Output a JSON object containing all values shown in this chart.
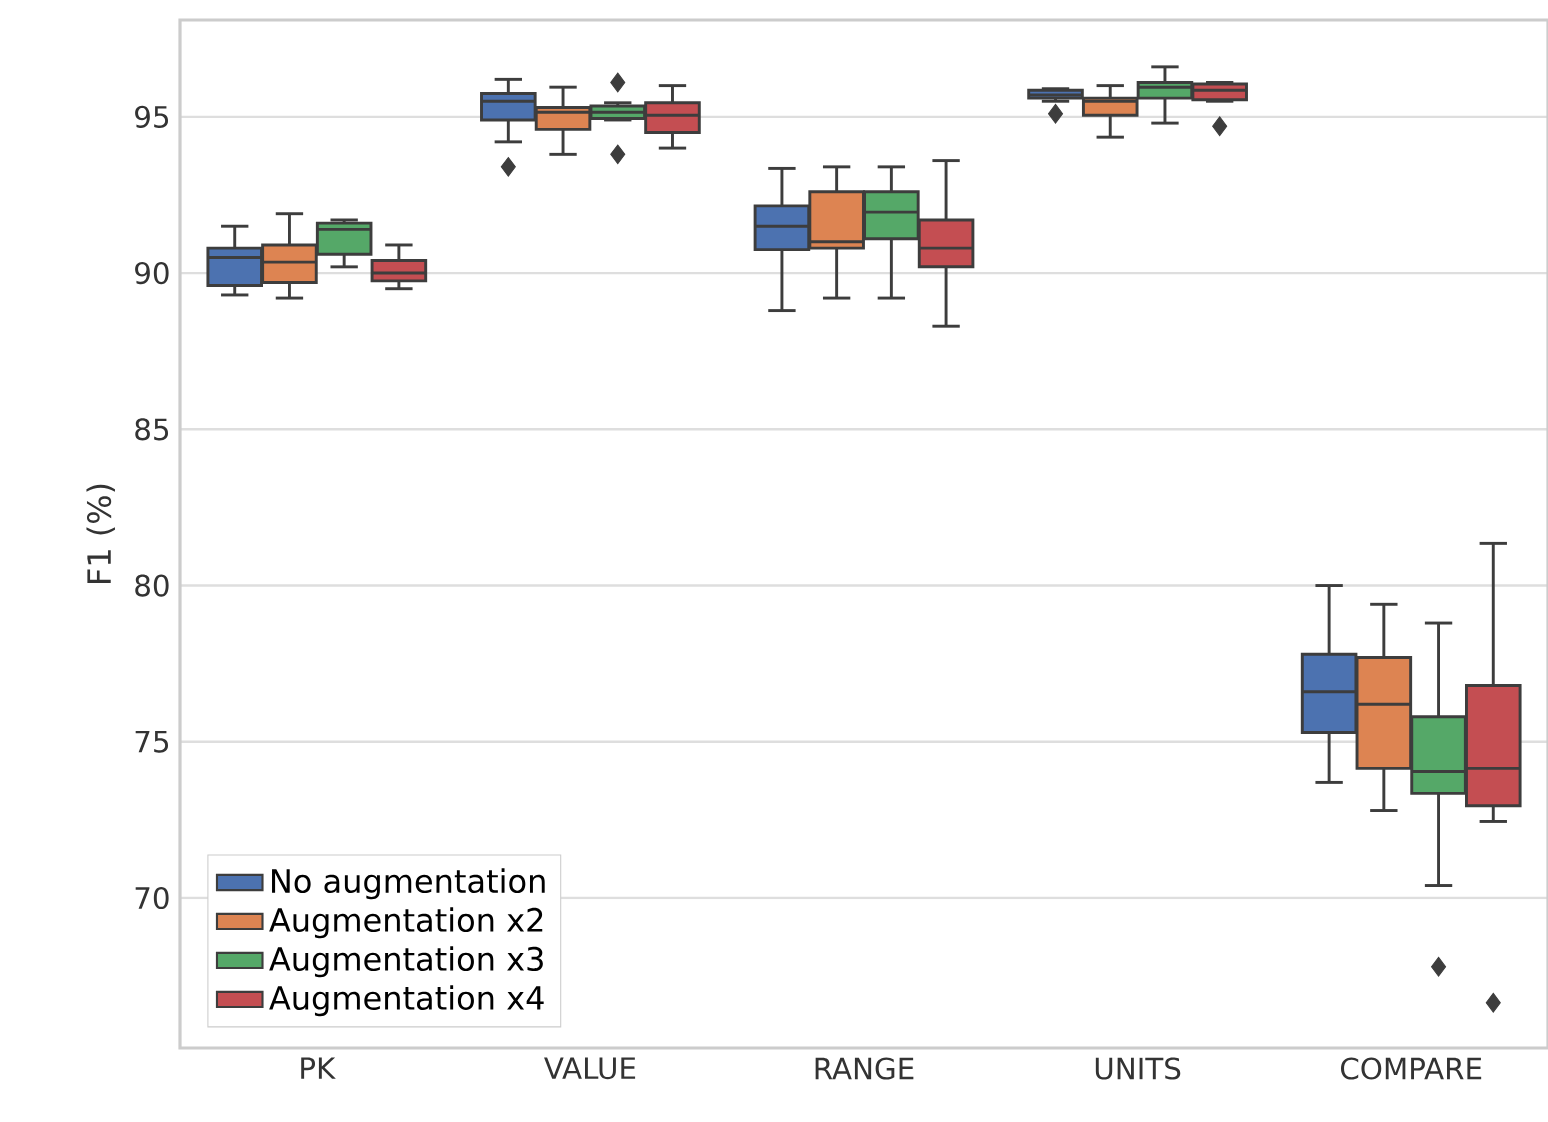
{
  "chart_data": {
    "type": "box",
    "ylabel": "F1 (%)",
    "categories": [
      "PK",
      "VALUE",
      "RANGE",
      "UNITS",
      "COMPARE"
    ],
    "series": [
      {
        "name": "No augmentation",
        "color": "#4c72b0",
        "boxes": [
          {
            "low": 89.3,
            "q1": 89.6,
            "median": 90.5,
            "q3": 90.8,
            "high": 91.5
          },
          {
            "low": 94.2,
            "q1": 94.9,
            "median": 95.5,
            "q3": 95.75,
            "high": 96.2,
            "outliers": [
              93.4
            ]
          },
          {
            "low": 88.8,
            "q1": 90.75,
            "median": 91.5,
            "q3": 92.15,
            "high": 93.35
          },
          {
            "low": 95.5,
            "q1": 95.6,
            "median": 95.7,
            "q3": 95.85,
            "high": 95.9,
            "outliers": [
              95.1
            ]
          },
          {
            "low": 73.7,
            "q1": 75.3,
            "median": 76.6,
            "q3": 77.8,
            "high": 80.0
          }
        ]
      },
      {
        "name": "Augmentation x2",
        "color": "#dd8452",
        "boxes": [
          {
            "low": 89.2,
            "q1": 89.7,
            "median": 90.35,
            "q3": 90.9,
            "high": 91.9
          },
          {
            "low": 93.8,
            "q1": 94.6,
            "median": 95.15,
            "q3": 95.3,
            "high": 95.95
          },
          {
            "low": 89.2,
            "q1": 90.8,
            "median": 91.0,
            "q3": 92.6,
            "high": 93.4
          },
          {
            "low": 94.35,
            "q1": 95.05,
            "median": 95.5,
            "q3": 95.6,
            "high": 96.0
          },
          {
            "low": 72.8,
            "q1": 74.15,
            "median": 76.2,
            "q3": 77.7,
            "high": 79.4
          }
        ]
      },
      {
        "name": "Augmentation x3",
        "color": "#55a868",
        "boxes": [
          {
            "low": 90.2,
            "q1": 90.6,
            "median": 91.4,
            "q3": 91.6,
            "high": 91.7
          },
          {
            "low": 94.9,
            "q1": 94.95,
            "median": 95.15,
            "q3": 95.35,
            "high": 95.45,
            "outliers": [
              96.1,
              93.8
            ]
          },
          {
            "low": 89.2,
            "q1": 91.1,
            "median": 91.95,
            "q3": 92.6,
            "high": 93.4
          },
          {
            "low": 94.8,
            "q1": 95.6,
            "median": 95.95,
            "q3": 96.1,
            "high": 96.6
          },
          {
            "low": 70.4,
            "q1": 73.35,
            "median": 74.05,
            "q3": 75.8,
            "high": 78.8,
            "outliers": [
              67.8
            ]
          }
        ]
      },
      {
        "name": "Augmentation x4",
        "color": "#c44e52",
        "boxes": [
          {
            "low": 89.5,
            "q1": 89.75,
            "median": 90.0,
            "q3": 90.4,
            "high": 90.9
          },
          {
            "low": 94.0,
            "q1": 94.5,
            "median": 95.05,
            "q3": 95.45,
            "high": 96.0
          },
          {
            "low": 88.3,
            "q1": 90.2,
            "median": 90.8,
            "q3": 91.7,
            "high": 93.6
          },
          {
            "low": 95.5,
            "q1": 95.55,
            "median": 95.85,
            "q3": 96.05,
            "high": 96.1,
            "outliers": [
              94.7
            ]
          },
          {
            "low": 72.45,
            "q1": 72.95,
            "median": 74.15,
            "q3": 76.8,
            "high": 81.35,
            "outliers": [
              66.65
            ]
          }
        ]
      }
    ],
    "ylim": [
      65.2,
      98.1
    ],
    "yticks": [
      70,
      75,
      80,
      85,
      90,
      95
    ],
    "grid": "y",
    "legend": "bottom left"
  }
}
